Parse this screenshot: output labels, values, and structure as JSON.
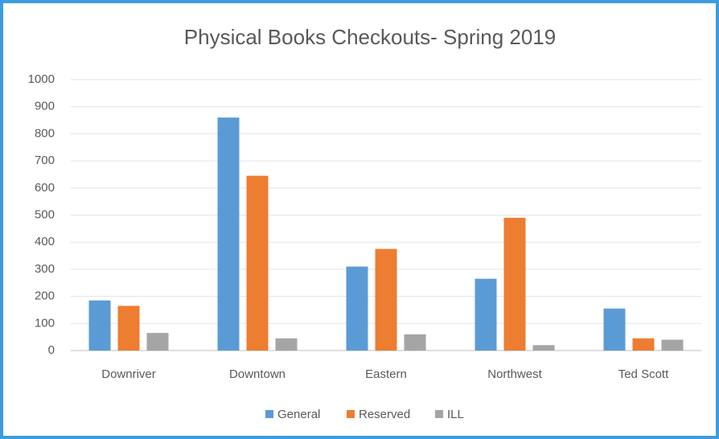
{
  "chart_data": {
    "type": "bar",
    "title": "Physical Books Checkouts- Spring 2019",
    "categories": [
      "Downriver",
      "Downtown",
      "Eastern",
      "Northwest",
      "Ted Scott"
    ],
    "series": [
      {
        "name": "General",
        "color": "#5b9bd5",
        "values": [
          185,
          860,
          310,
          265,
          155
        ]
      },
      {
        "name": "Reserved",
        "color": "#ed7d31",
        "values": [
          165,
          645,
          375,
          490,
          45
        ]
      },
      {
        "name": "ILL",
        "color": "#a5a5a5",
        "values": [
          65,
          45,
          60,
          20,
          40
        ]
      }
    ],
    "ylim": [
      0,
      1000
    ],
    "yticks": [
      0,
      100,
      200,
      300,
      400,
      500,
      600,
      700,
      800,
      900,
      1000
    ],
    "grid": true,
    "legend": "bottom"
  }
}
